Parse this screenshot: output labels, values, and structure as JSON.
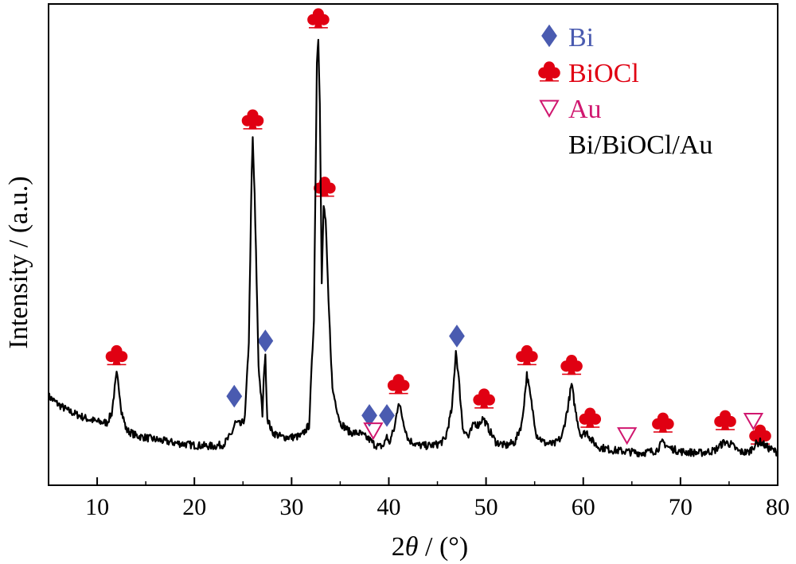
{
  "chart_data": {
    "type": "line",
    "title": "",
    "xlabel": "2θ / (°)",
    "xlabel_parts": {
      "symbol_num": "2",
      "symbol_var": "θ",
      "rest": " / (°)"
    },
    "ylabel": "Intensity / (a.u.)",
    "xlim": [
      5,
      80
    ],
    "ylim": [
      0,
      100
    ],
    "y_ticks_labeled": false,
    "grid": false,
    "x_ticks": [
      10,
      20,
      30,
      40,
      50,
      60,
      70,
      80
    ],
    "x_tick_labels": [
      "10",
      "20",
      "30",
      "40",
      "50",
      "60",
      "70",
      "80"
    ],
    "series": [
      {
        "name": "Bi/BiOCl/Au",
        "color": "#000000",
        "points": [
          [
            5,
            18.5
          ],
          [
            6,
            16.8
          ],
          [
            7,
            15.5
          ],
          [
            8,
            14.6
          ],
          [
            9,
            13.8
          ],
          [
            10,
            13.2
          ],
          [
            11,
            13.0
          ],
          [
            11.5,
            15.0
          ],
          [
            11.8,
            20.0
          ],
          [
            12.0,
            23.0
          ],
          [
            12.2,
            21.0
          ],
          [
            12.5,
            15.5
          ],
          [
            13,
            11.5
          ],
          [
            14,
            10.3
          ],
          [
            16,
            9.5
          ],
          [
            18,
            8.8
          ],
          [
            20,
            8.3
          ],
          [
            22,
            8.1
          ],
          [
            23,
            8.5
          ],
          [
            23.8,
            10.5
          ],
          [
            24.2,
            13.0
          ],
          [
            24.8,
            12.5
          ],
          [
            25.2,
            14.0
          ],
          [
            25.6,
            30.0
          ],
          [
            25.9,
            65.0
          ],
          [
            26.0,
            72.0
          ],
          [
            26.2,
            60.0
          ],
          [
            26.6,
            25.0
          ],
          [
            27.0,
            14.5
          ],
          [
            27.2,
            25.0
          ],
          [
            27.3,
            26.5
          ],
          [
            27.5,
            14.0
          ],
          [
            28,
            11.0
          ],
          [
            29,
            10.0
          ],
          [
            30,
            10.0
          ],
          [
            31,
            10.2
          ],
          [
            31.8,
            12.5
          ],
          [
            32.3,
            35.0
          ],
          [
            32.6,
            88.0
          ],
          [
            32.75,
            93.0
          ],
          [
            32.9,
            80.0
          ],
          [
            33.1,
            42.0
          ],
          [
            33.3,
            58.0
          ],
          [
            33.5,
            55.0
          ],
          [
            33.8,
            38.0
          ],
          [
            34.2,
            20.0
          ],
          [
            35,
            13.0
          ],
          [
            36,
            11.0
          ],
          [
            37,
            10.8
          ],
          [
            38,
            9.5
          ],
          [
            38.5,
            8.5
          ],
          [
            39,
            8.0
          ],
          [
            39.5,
            8.3
          ],
          [
            39.8,
            10.5
          ],
          [
            40.0,
            8.5
          ],
          [
            40.6,
            12.0
          ],
          [
            41.0,
            17.5
          ],
          [
            41.4,
            14.0
          ],
          [
            42,
            9.5
          ],
          [
            43,
            8.3
          ],
          [
            44,
            8.2
          ],
          [
            45,
            8.5
          ],
          [
            45.8,
            9.5
          ],
          [
            46.5,
            16.0
          ],
          [
            46.9,
            28.0
          ],
          [
            47.2,
            22.0
          ],
          [
            47.6,
            12.0
          ],
          [
            48.2,
            10.0
          ],
          [
            48.8,
            13.0
          ],
          [
            49.2,
            12.5
          ],
          [
            49.7,
            14.0
          ],
          [
            50.2,
            12.0
          ],
          [
            51,
            9.0
          ],
          [
            52,
            8.2
          ],
          [
            53,
            9.0
          ],
          [
            53.7,
            13.0
          ],
          [
            54.2,
            23.0
          ],
          [
            54.6,
            18.0
          ],
          [
            55.2,
            10.5
          ],
          [
            56,
            8.8
          ],
          [
            57,
            8.5
          ],
          [
            57.8,
            10.0
          ],
          [
            58.4,
            16.0
          ],
          [
            58.8,
            21.0
          ],
          [
            59.2,
            15.5
          ],
          [
            59.7,
            10.5
          ],
          [
            60.4,
            11.0
          ],
          [
            60.8,
            9.5
          ],
          [
            61.5,
            8.0
          ],
          [
            63,
            7.3
          ],
          [
            64.5,
            7.0
          ],
          [
            66,
            6.7
          ],
          [
            67.5,
            7.2
          ],
          [
            68.2,
            9.0
          ],
          [
            68.8,
            7.8
          ],
          [
            70,
            7.0
          ],
          [
            72,
            6.7
          ],
          [
            73.5,
            7.2
          ],
          [
            74.5,
            9.0
          ],
          [
            75.2,
            8.5
          ],
          [
            76,
            7.0
          ],
          [
            77,
            6.8
          ],
          [
            77.7,
            8.5
          ],
          [
            78.2,
            9.0
          ],
          [
            79,
            7.8
          ],
          [
            80,
            6.8
          ]
        ]
      }
    ],
    "legend_position": "top-right",
    "legend": [
      {
        "marker": "diamond",
        "label": "Bi",
        "color": "#4a5bb0"
      },
      {
        "marker": "club",
        "label": "BiOCl",
        "color": "#e00012"
      },
      {
        "marker": "triangle-down-open",
        "label": "Au",
        "color": "#d0176f"
      },
      {
        "marker": "none",
        "label": "Bi/BiOCl/Au",
        "color": "#000000"
      }
    ],
    "annotations": [
      {
        "marker": "club",
        "x": 12.0,
        "y": 27
      },
      {
        "marker": "club",
        "x": 26.0,
        "y": 76
      },
      {
        "marker": "club",
        "x": 32.75,
        "y": 97
      },
      {
        "marker": "club",
        "x": 33.4,
        "y": 62
      },
      {
        "marker": "club",
        "x": 41.0,
        "y": 21
      },
      {
        "marker": "club",
        "x": 49.8,
        "y": 18
      },
      {
        "marker": "club",
        "x": 54.2,
        "y": 27
      },
      {
        "marker": "club",
        "x": 58.8,
        "y": 25
      },
      {
        "marker": "club",
        "x": 60.7,
        "y": 14
      },
      {
        "marker": "club",
        "x": 68.2,
        "y": 13
      },
      {
        "marker": "club",
        "x": 74.6,
        "y": 13.5
      },
      {
        "marker": "club",
        "x": 78.2,
        "y": 10.5
      },
      {
        "marker": "diamond",
        "x": 24.1,
        "y": 18.5
      },
      {
        "marker": "diamond",
        "x": 27.3,
        "y": 30
      },
      {
        "marker": "diamond",
        "x": 47.0,
        "y": 31
      },
      {
        "marker": "diamond",
        "x": 38.0,
        "y": 14.5
      },
      {
        "marker": "diamond",
        "x": 39.8,
        "y": 14.5
      },
      {
        "marker": "triangle-down-open",
        "x": 38.4,
        "y": 11.5
      },
      {
        "marker": "triangle-down-open",
        "x": 64.5,
        "y": 10.5
      },
      {
        "marker": "triangle-down-open",
        "x": 77.5,
        "y": 13.5
      }
    ]
  }
}
